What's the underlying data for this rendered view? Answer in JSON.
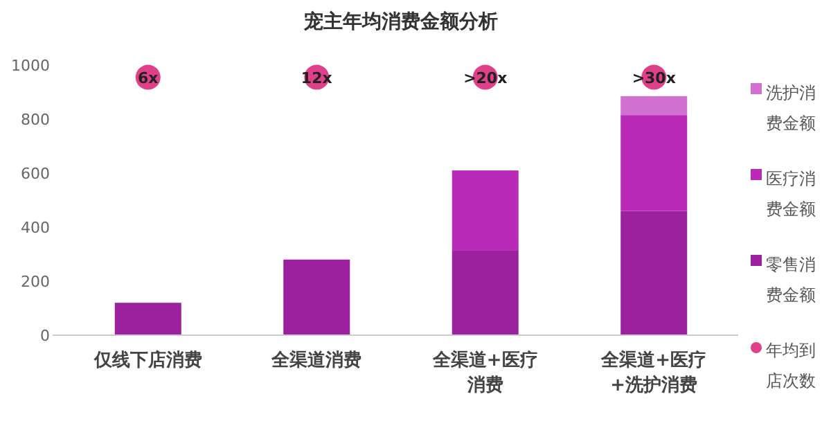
{
  "chart_data": {
    "type": "bar",
    "title": "宠主年均消费金额分析",
    "categories": [
      "仅线下店消费",
      "全渠道消费",
      "全渠道+医疗消费",
      "全渠道+医疗+洗护消费"
    ],
    "stacked": true,
    "ylim": [
      0,
      1000
    ],
    "yticks": [
      0,
      200,
      400,
      600,
      800,
      1000
    ],
    "grid": false,
    "legend": "right",
    "series": [
      {
        "name": "零售消费金额",
        "color": "#9c219e",
        "values": [
          120,
          280,
          315,
          460
        ]
      },
      {
        "name": "医疗消费金额",
        "color": "#b92ab9",
        "values": [
          null,
          null,
          295,
          355
        ]
      },
      {
        "name": "洗护消费金额",
        "color": "#d070d0",
        "values": [
          null,
          null,
          null,
          70
        ]
      },
      {
        "name": "年均到店次数",
        "type": "scatter",
        "marker": "circle",
        "color": "#e0408a",
        "values": [
          955,
          955,
          955,
          955
        ]
      }
    ],
    "annotations": [
      {
        "text": "6x",
        "x": "仅线下店消费",
        "y": 955
      },
      {
        "text": "12x",
        "x": "全渠道消费",
        "y": 955
      },
      {
        "text": ">20x",
        "x": "全渠道+医疗消费",
        "y": 955
      },
      {
        "text": ">30x",
        "x": "全渠道+医疗+洗护消费",
        "y": 955
      }
    ]
  }
}
